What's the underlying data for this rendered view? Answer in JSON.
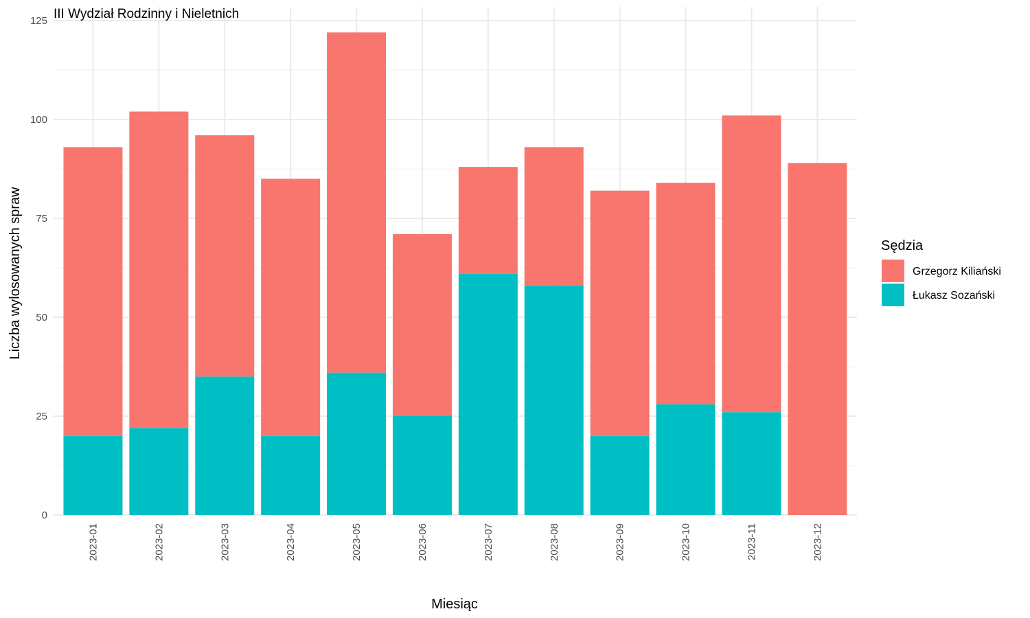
{
  "chart_data": {
    "type": "bar",
    "stacked": true,
    "title": "III Wydział Rodzinny i Nieletnich",
    "xlabel": "Miesiąc",
    "ylabel": "Liczba wylosowanych spraw",
    "ylim": [
      0,
      125
    ],
    "yticks": [
      0,
      25,
      50,
      75,
      100,
      125
    ],
    "grid": true,
    "legend_position": "right",
    "legend_title": "Sędzia",
    "categories": [
      "2023-01",
      "2023-02",
      "2023-03",
      "2023-04",
      "2023-05",
      "2023-06",
      "2023-07",
      "2023-08",
      "2023-09",
      "2023-10",
      "2023-11",
      "2023-12"
    ],
    "series": [
      {
        "name": "Łukasz Sozański",
        "color": "#00BFC4",
        "values": [
          20,
          22,
          35,
          20,
          36,
          25,
          61,
          58,
          20,
          28,
          26,
          0
        ]
      },
      {
        "name": "Grzegorz Kiliański",
        "color": "#F8766D",
        "values": [
          73,
          80,
          61,
          65,
          86,
          46,
          27,
          35,
          62,
          56,
          75,
          89
        ]
      }
    ],
    "legend_order": [
      "Grzegorz Kiliański",
      "Łukasz Sozański"
    ]
  }
}
